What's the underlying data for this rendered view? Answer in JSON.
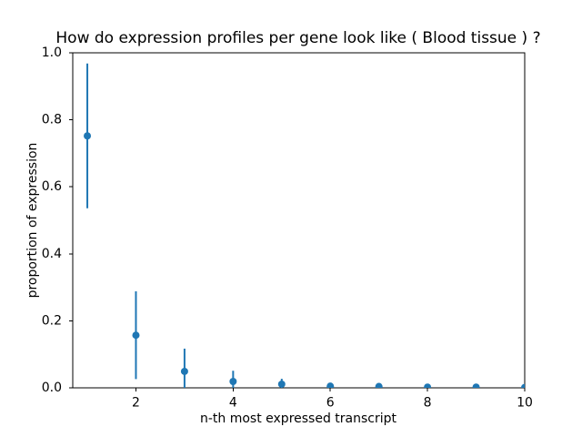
{
  "figure": {
    "background": "#ffffff"
  },
  "chart_data": {
    "type": "scatter",
    "subtype": "errorbar",
    "title": "How do expression profiles per gene look like ( Blood tissue ) ?",
    "xlabel": "n-th most expressed transcript",
    "ylabel": "proportion of expression",
    "x": [
      1,
      2,
      3,
      4,
      5,
      6,
      7,
      8,
      9,
      10
    ],
    "y": [
      0.752,
      0.157,
      0.049,
      0.019,
      0.011,
      0.005,
      0.004,
      0.002,
      0.002,
      0.001
    ],
    "yerr": [
      0.216,
      0.131,
      0.068,
      0.032,
      0.016,
      0.007,
      0.005,
      0.003,
      0.003,
      0.002
    ],
    "xlim": [
      0.7,
      10.0
    ],
    "ylim": [
      0.0,
      1.0
    ],
    "xticks": [
      2,
      4,
      6,
      8,
      10
    ],
    "xtick_labels": [
      "2",
      "4",
      "6",
      "8",
      "10"
    ],
    "yticks": [
      0.0,
      0.2,
      0.4,
      0.6,
      0.8,
      1.0
    ],
    "ytick_labels": [
      "0.0",
      "0.2",
      "0.4",
      "0.6",
      "0.8",
      "1.0"
    ],
    "marker": "o",
    "marker_color": "#1f77b4",
    "errorbar_color": "#1f77b4",
    "axis_color": "#000000",
    "grid": false,
    "legend": null
  }
}
